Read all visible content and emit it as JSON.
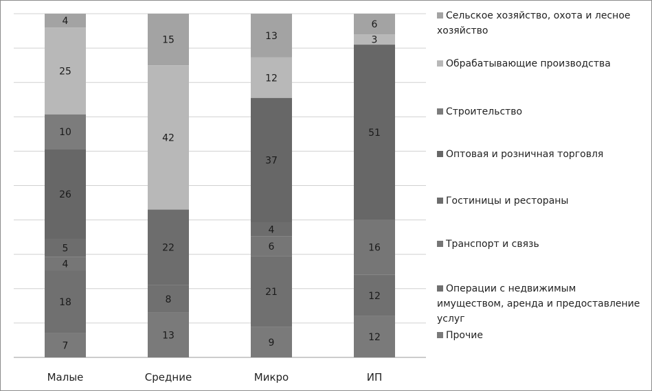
{
  "chart_data": {
    "type": "bar",
    "stacked": true,
    "percent_stacked": true,
    "categories": [
      "Малые",
      "Средние",
      "Микро",
      "ИП"
    ],
    "ylim": [
      0,
      100
    ],
    "grid": true,
    "legend_position": "right",
    "series": [
      {
        "name": "Сельское хозяйство, охота и лесное хозяйство",
        "color": "#a3a3a3",
        "values": [
          4,
          15,
          13,
          6
        ]
      },
      {
        "name": "Обрабатывающие производства",
        "color": "#b8b8b8",
        "values": [
          25,
          42,
          12,
          3
        ]
      },
      {
        "name": "Строительство",
        "color": "#7c7c7c",
        "values": [
          10,
          0,
          0,
          0
        ]
      },
      {
        "name": "Оптовая и розничная торговля",
        "color": "#676767",
        "values": [
          26,
          0,
          37,
          51
        ]
      },
      {
        "name": "Гостиницы и рестораны",
        "color": "#6d6d6d",
        "values": [
          5,
          22,
          4,
          0
        ]
      },
      {
        "name": "Транспорт и связь",
        "color": "#767676",
        "values": [
          4,
          0,
          6,
          16
        ]
      },
      {
        "name": "Операции с недвижимым имуществом, аренда и предоставление услуг",
        "color": "#707070",
        "values": [
          18,
          8,
          21,
          12
        ]
      },
      {
        "name": "Прочие",
        "color": "#7a7a7a",
        "values": [
          7,
          13,
          9,
          12
        ]
      }
    ]
  }
}
